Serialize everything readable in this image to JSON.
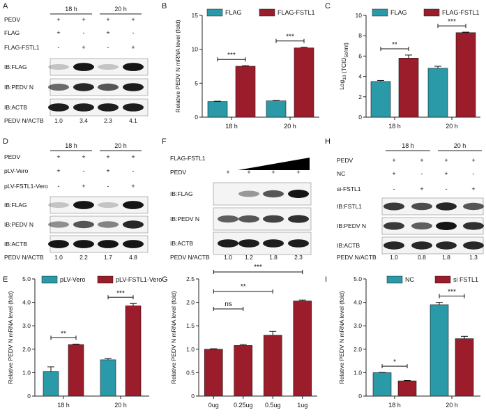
{
  "colors": {
    "flag": "#2a9aa8",
    "flag_fstl1": "#9b1c2b",
    "axis": "#222222",
    "band": "#151515",
    "panel_bg": "#f4f4f4"
  },
  "panels": {
    "A": {
      "label": "A",
      "times": [
        "18 h",
        "20 h"
      ],
      "rows": [
        {
          "name": "PEDV",
          "marks": [
            "+",
            "+",
            "+",
            "+"
          ]
        },
        {
          "name": "FLAG",
          "marks": [
            "+",
            "-",
            "+",
            "-"
          ]
        },
        {
          "name": "FLAG-FSTL1",
          "marks": [
            "-",
            "+",
            "-",
            "+"
          ]
        }
      ],
      "blots": [
        {
          "label": "IB:FLAG",
          "intensity": [
            0.02,
            0.95,
            0.02,
            0.95
          ]
        },
        {
          "label": "IB:PEDV N",
          "intensity": [
            0.5,
            0.85,
            0.6,
            0.9
          ]
        },
        {
          "label": "IB:ACTB",
          "intensity": [
            0.9,
            0.9,
            0.9,
            0.9
          ]
        }
      ],
      "ratio_label": "PEDV N/ACTB",
      "ratios": [
        "1.0",
        "3.4",
        "2.3",
        "4.1"
      ]
    },
    "D": {
      "label": "D",
      "times": [
        "18 h",
        "20 h"
      ],
      "rows": [
        {
          "name": "PEDV",
          "marks": [
            "+",
            "+",
            "+",
            "+"
          ]
        },
        {
          "name": "pLV-Vero",
          "marks": [
            "+",
            "-",
            "+",
            "-"
          ]
        },
        {
          "name": "pLV-FSTL1-Vero",
          "marks": [
            "-",
            "+",
            "-",
            "+"
          ]
        }
      ],
      "blots": [
        {
          "label": "IB:FLAG",
          "intensity": [
            0.02,
            0.95,
            0.02,
            0.95
          ]
        },
        {
          "label": "IB:PEDV N",
          "intensity": [
            0.3,
            0.6,
            0.35,
            0.85
          ]
        },
        {
          "label": "IB:ACTB",
          "intensity": [
            0.95,
            0.95,
            0.95,
            0.95
          ]
        }
      ],
      "ratio_label": "PEDV N/ACTB",
      "ratios": [
        "1.0",
        "2.2",
        "1.7",
        "4.8"
      ]
    },
    "F": {
      "label": "F",
      "gradient_label": "FLAG-FSTL1",
      "rows": [
        {
          "name": "PEDV",
          "marks": [
            "+",
            "+",
            "+",
            "+"
          ]
        }
      ],
      "blots": [
        {
          "label": "IB:FLAG",
          "intensity": [
            0.0,
            0.25,
            0.6,
            0.98
          ]
        },
        {
          "label": "IB:PEDV N",
          "intensity": [
            0.55,
            0.6,
            0.7,
            0.8
          ]
        },
        {
          "label": "IB:ACTB",
          "intensity": [
            0.9,
            0.9,
            0.9,
            0.9
          ]
        }
      ],
      "ratio_label": "PEDV N/ACTB",
      "ratios": [
        "1.0",
        "1.2",
        "1.8",
        "2.3"
      ]
    },
    "H": {
      "label": "H",
      "times": [
        "18 h",
        "20 h"
      ],
      "rows": [
        {
          "name": "PEDV",
          "marks": [
            "+",
            "+",
            "+",
            "+"
          ]
        },
        {
          "name": "NC",
          "marks": [
            "+",
            "-",
            "+",
            "-"
          ]
        },
        {
          "name": "si-FSTL1",
          "marks": [
            "-",
            "+",
            "-",
            "+"
          ]
        }
      ],
      "blots": [
        {
          "label": "IB:FSTL1",
          "intensity": [
            0.75,
            0.65,
            0.85,
            0.6
          ]
        },
        {
          "label": "IB:PEDV N",
          "intensity": [
            0.75,
            0.55,
            0.98,
            0.8
          ]
        },
        {
          "label": "IB:ACTB",
          "intensity": [
            0.85,
            0.85,
            0.85,
            0.85
          ]
        }
      ],
      "ratio_label": "PEDV N/ACTB",
      "ratios": [
        "1.0",
        "0.8",
        "1.8",
        "1.3"
      ]
    }
  },
  "chart_data": [
    {
      "panel": "B",
      "type": "bar",
      "categories": [
        "18 h",
        "20 h"
      ],
      "series": [
        {
          "name": "FLAG",
          "values": [
            2.3,
            2.4
          ],
          "errors": [
            0.05,
            0.05
          ]
        },
        {
          "name": "FLAG-FSTL1",
          "values": [
            7.5,
            10.2
          ],
          "errors": [
            0.08,
            0.1
          ]
        }
      ],
      "ylabel": "Relative PEDV N mRNA level (fold)",
      "xlabel": "",
      "ylim": [
        0,
        15
      ],
      "yticks": [
        "0",
        "5",
        "10",
        "15"
      ],
      "significance": [
        "***",
        "***"
      ],
      "legend": "top"
    },
    {
      "panel": "C",
      "type": "bar",
      "categories": [
        "18 h",
        "20 h"
      ],
      "series": [
        {
          "name": "FLAG",
          "values": [
            3.5,
            4.8
          ],
          "errors": [
            0.1,
            0.2
          ]
        },
        {
          "name": "FLAG-FSTL1",
          "values": [
            5.8,
            8.3
          ],
          "errors": [
            0.3,
            0.05
          ]
        }
      ],
      "ylabel": "Log",
      "ylabel_sub": "10",
      "ylabel_tail": " (TCID",
      "ylabel_sub2": "50",
      "ylabel_end": "/ml)",
      "ylim": [
        0,
        10
      ],
      "yticks": [
        "0",
        "2",
        "4",
        "6",
        "8",
        "10"
      ],
      "significance": [
        "**",
        "***"
      ],
      "legend": "top"
    },
    {
      "panel": "E",
      "type": "bar",
      "categories": [
        "18 h",
        "20 h"
      ],
      "series": [
        {
          "name": "pLV-Vero",
          "values": [
            1.05,
            1.55
          ],
          "errors": [
            0.2,
            0.05
          ]
        },
        {
          "name": "pLV-FSTL1-Vero",
          "values": [
            2.2,
            3.85
          ],
          "errors": [
            0.02,
            0.1
          ]
        }
      ],
      "ylabel": "Relative PEDV N mRNA level (fold)",
      "ylim": [
        0,
        5
      ],
      "yticks": [
        "0",
        "1.0",
        "2.0",
        "3.0",
        "4.0",
        "5.0"
      ],
      "significance": [
        "**",
        "***"
      ],
      "legend": "top"
    },
    {
      "panel": "G",
      "type": "bar",
      "categories": [
        "0ug",
        "0.25ug",
        "0.5ug",
        "1ug"
      ],
      "series": [
        {
          "name": "FLAG-FSTL1",
          "values": [
            1.0,
            1.08,
            1.3,
            2.03
          ],
          "errors": [
            0.01,
            0.02,
            0.08,
            0.02
          ]
        }
      ],
      "ylabel": "Relative PEDV N mRNA level (fold)",
      "ylim": [
        0,
        2.5
      ],
      "yticks": [
        "0",
        "0.5",
        "1.0",
        "1.5",
        "2.0",
        "2.5"
      ],
      "significance": [
        "ns",
        "**",
        "***"
      ]
    },
    {
      "panel": "I",
      "type": "bar",
      "categories": [
        "18 h",
        "20 h"
      ],
      "series": [
        {
          "name": "NC",
          "values": [
            1.0,
            3.9
          ],
          "errors": [
            0.01,
            0.1
          ]
        },
        {
          "name": "si FSTL1",
          "values": [
            0.65,
            2.45
          ],
          "errors": [
            0.02,
            0.1
          ]
        }
      ],
      "ylabel": "Relative PEDV N mRNA level (fold)",
      "ylim": [
        0,
        5
      ],
      "yticks": [
        "0",
        "1.0",
        "2.0",
        "3.0",
        "4.0",
        "5.0"
      ],
      "significance": [
        "*",
        "***"
      ],
      "legend": "top"
    }
  ]
}
